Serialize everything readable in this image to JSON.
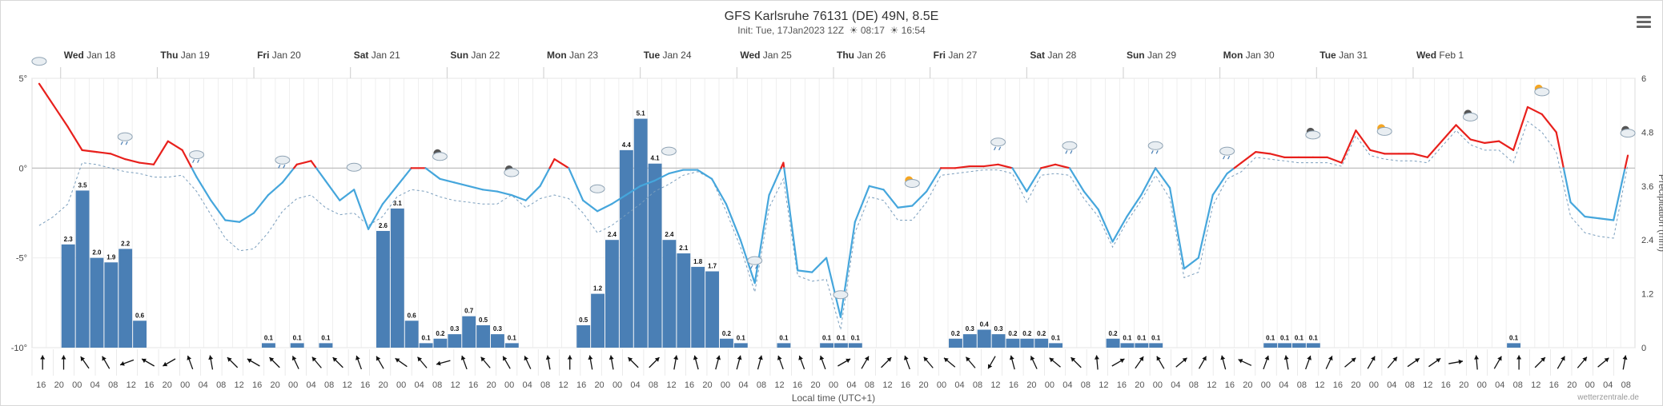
{
  "title": "GFS Karlsruhe 76131 (DE) 49N, 8.5E",
  "subtitle": {
    "init": "Init: Tue, 17Jan2023 12Z",
    "sunrise": "08:17",
    "sunset": "16:54"
  },
  "watermark": "wetterzentrale.de",
  "menu_icon": "hamburger-menu-icon",
  "colors": {
    "temp_warm": "#e8201c",
    "temp_cold": "#45a6dc",
    "precip_bar": "#4a7fb5",
    "dashed": "#7a9ebd",
    "grid": "#e4e4e4",
    "zero_line": "#b8b8b8"
  },
  "chart_data": {
    "type": "line",
    "xlabel": "Local time (UTC+1)",
    "ylabel_left": "",
    "ylabel_right": "Precipitation (mm)",
    "left_ticks": [
      "5°",
      "0°",
      "-5°",
      "-10°"
    ],
    "right_ticks": [
      "6",
      "4.8",
      "3.6",
      "2.4",
      "1.2",
      "0"
    ],
    "ylim_temp": [
      -10,
      5
    ],
    "ylim_precip": [
      0,
      6
    ],
    "grid": true,
    "day_labels": [
      {
        "dow": "Wed",
        "date": "Jan 18"
      },
      {
        "dow": "Thu",
        "date": "Jan 19"
      },
      {
        "dow": "Fri",
        "date": "Jan 20"
      },
      {
        "dow": "Sat",
        "date": "Jan 21"
      },
      {
        "dow": "Sun",
        "date": "Jan 22"
      },
      {
        "dow": "Mon",
        "date": "Jan 23"
      },
      {
        "dow": "Tue",
        "date": "Jan 24"
      },
      {
        "dow": "Wed",
        "date": "Jan 25"
      },
      {
        "dow": "Thu",
        "date": "Jan 26"
      },
      {
        "dow": "Fri",
        "date": "Jan 27"
      },
      {
        "dow": "Sat",
        "date": "Jan 28"
      },
      {
        "dow": "Sun",
        "date": "Jan 29"
      },
      {
        "dow": "Mon",
        "date": "Jan 30"
      },
      {
        "dow": "Tue",
        "date": "Jan 31"
      },
      {
        "dow": "Wed",
        "date": "Feb 1"
      }
    ],
    "hour_labels": [
      "16",
      "20",
      "00",
      "04",
      "08",
      "12",
      "16",
      "20",
      "00",
      "04",
      "08",
      "12",
      "16",
      "20",
      "00",
      "04",
      "08",
      "12",
      "16",
      "20",
      "00",
      "04",
      "08",
      "12",
      "16",
      "20",
      "00",
      "04",
      "08",
      "12",
      "16",
      "20",
      "00",
      "04",
      "08",
      "12",
      "16",
      "20",
      "00",
      "04",
      "08",
      "12",
      "16",
      "20",
      "00",
      "04",
      "08",
      "12",
      "16",
      "20",
      "00",
      "04",
      "08",
      "12",
      "16",
      "20",
      "00",
      "04",
      "08",
      "12",
      "16",
      "20",
      "00",
      "04",
      "08",
      "12",
      "16",
      "20",
      "00",
      "04",
      "08",
      "12",
      "16",
      "20",
      "00",
      "04",
      "08",
      "12",
      "16",
      "20",
      "00",
      "04",
      "08",
      "12",
      "16",
      "20",
      "00",
      "04",
      "08"
    ],
    "temperature": [
      4.7,
      3.5,
      2.3,
      1.0,
      0.9,
      0.8,
      0.5,
      0.3,
      0.2,
      1.5,
      1.0,
      -0.5,
      -1.8,
      -2.9,
      -3.0,
      -2.5,
      -1.5,
      -0.8,
      0.2,
      0.4,
      -0.7,
      -1.8,
      -1.2,
      -3.4,
      -2.0,
      -1.0,
      0.0,
      0.0,
      -0.6,
      -0.8,
      -1.0,
      -1.2,
      -1.3,
      -1.5,
      -1.8,
      -1.0,
      0.5,
      0.0,
      -1.8,
      -2.4,
      -2.0,
      -1.5,
      -1.0,
      -0.7,
      -0.3,
      -0.1,
      -0.1,
      -0.6,
      -2.0,
      -4.0,
      -6.4,
      -1.5,
      0.3,
      -5.7,
      -5.8,
      -5.0,
      -8.3,
      -3.0,
      -1.0,
      -1.2,
      -2.2,
      -2.1,
      -1.3,
      0.0,
      0.0,
      0.1,
      0.1,
      0.2,
      0.0,
      -1.3,
      0.0,
      0.2,
      0.0,
      -1.3,
      -2.3,
      -4.1,
      -2.7,
      -1.5,
      0.0,
      -1.1,
      -5.6,
      -5.0,
      -1.5,
      -0.3,
      0.3,
      0.9,
      0.8,
      0.6,
      0.6,
      0.6,
      0.6,
      0.3,
      2.1,
      1.0,
      0.8,
      0.8,
      0.8,
      0.6,
      1.5,
      2.4,
      1.6,
      1.4,
      1.5,
      1.0,
      3.4,
      3.0,
      2.0,
      -1.9,
      -2.7,
      -2.8,
      -2.9,
      0.7
    ],
    "temperature_dashed": [
      -3.2,
      -2.7,
      -2.0,
      0.3,
      0.2,
      0.0,
      -0.2,
      -0.3,
      -0.5,
      -0.5,
      -0.4,
      -1.3,
      -2.6,
      -3.9,
      -4.6,
      -4.5,
      -3.6,
      -2.4,
      -1.7,
      -1.5,
      -2.2,
      -2.6,
      -2.5,
      -3.2,
      -2.7,
      -1.6,
      -1.2,
      -1.3,
      -1.6,
      -1.8,
      -1.9,
      -2.0,
      -2.0,
      -1.5,
      -2.2,
      -1.7,
      -1.5,
      -1.7,
      -2.5,
      -3.6,
      -3.2,
      -2.6,
      -2.0,
      -1.3,
      -0.9,
      -0.4,
      -0.2,
      -0.6,
      -2.4,
      -4.4,
      -6.9,
      -2.2,
      -0.6,
      -6.0,
      -6.3,
      -6.2,
      -9.0,
      -3.6,
      -1.6,
      -1.8,
      -2.9,
      -2.9,
      -1.9,
      -0.4,
      -0.3,
      -0.2,
      -0.1,
      -0.1,
      -0.3,
      -1.9,
      -0.4,
      -0.3,
      -0.4,
      -1.7,
      -2.7,
      -4.4,
      -3.0,
      -1.8,
      -0.4,
      -1.7,
      -6.1,
      -5.8,
      -2.1,
      -0.6,
      -0.2,
      0.6,
      0.5,
      0.4,
      0.3,
      0.3,
      0.3,
      0.1,
      1.8,
      0.7,
      0.5,
      0.4,
      0.4,
      0.3,
      1.2,
      2.1,
      1.3,
      1.0,
      1.0,
      0.3,
      2.6,
      2.0,
      0.9,
      -2.7,
      -3.6,
      -3.8,
      -3.9,
      0.2
    ],
    "precipitation": [
      0,
      0,
      2.3,
      3.5,
      2.0,
      1.9,
      2.2,
      0.6,
      0,
      0,
      0,
      0,
      0,
      0,
      0,
      0,
      0.1,
      0,
      0.1,
      0,
      0.1,
      0,
      0,
      0,
      2.6,
      3.1,
      0.6,
      0.1,
      0.2,
      0.3,
      0.7,
      0.5,
      0.3,
      0.1,
      0,
      0,
      0,
      0,
      0.5,
      1.2,
      2.4,
      4.4,
      5.1,
      4.1,
      2.4,
      2.1,
      1.8,
      1.7,
      0.2,
      0.1,
      0,
      0,
      0.1,
      0,
      0,
      0.1,
      0.1,
      0.1,
      0,
      0,
      0,
      0,
      0,
      0,
      0.2,
      0.3,
      0.4,
      0.3,
      0.2,
      0.2,
      0.2,
      0.1,
      0,
      0,
      0,
      0.2,
      0.1,
      0.1,
      0.1,
      0,
      0,
      0,
      0,
      0,
      0,
      0,
      0.1,
      0.1,
      0.1,
      0.1,
      0,
      0,
      0,
      0,
      0,
      0,
      0,
      0,
      0,
      0,
      0,
      0,
      0,
      0.1,
      0,
      0,
      0,
      0,
      0,
      0,
      0,
      0,
      0,
      0
    ],
    "wind_dir_deg": [
      270,
      270,
      235,
      240,
      160,
      210,
      150,
      250,
      260,
      225,
      210,
      225,
      245,
      230,
      225,
      250,
      240,
      215,
      230,
      165,
      250,
      230,
      240,
      245,
      260,
      270,
      260,
      260,
      225,
      315,
      280,
      255,
      285,
      285,
      285,
      250,
      250,
      250,
      330,
      300,
      315,
      250,
      230,
      220,
      230,
      120,
      255,
      245,
      220,
      225,
      265,
      330,
      305,
      240,
      320,
      300,
      255,
      205,
      290,
      260,
      290,
      295,
      320,
      300,
      310,
      325,
      325,
      350,
      265,
      300,
      270,
      315,
      300,
      310,
      320,
      280
    ],
    "weather_icons": [
      "cloud-icon",
      "sleet-icon",
      "sleet-icon",
      "rain-cloud-icon",
      "cloud-icon",
      "moon-cloud-icon",
      "moon-cloud-icon",
      "cloud-icon",
      "cloud-icon",
      "sleet-icon",
      "cloud-icon",
      "sun-cloud-icon",
      "snow-icon",
      "sleet-icon",
      "sleet-icon",
      "sleet-icon",
      "moon-cloud-icon",
      "sun-cloud-icon",
      "moon-cloud-icon",
      "sun-cloud-icon",
      "moon-cloud-icon"
    ]
  }
}
